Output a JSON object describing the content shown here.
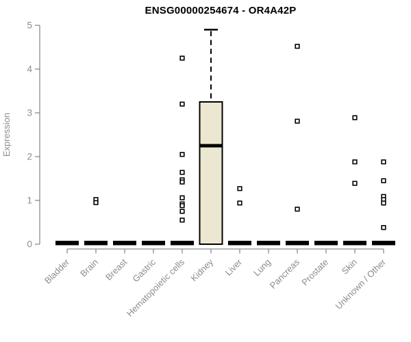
{
  "colors": {
    "background": "#ffffff",
    "box_fill": "#ece7d0",
    "box_border": "#000000",
    "median": "#000000",
    "zero_bar": "#000000",
    "whisker": "#000000",
    "outlier_fill": "#ffffff",
    "outlier_border": "#000000",
    "axis": "#8a8a8a",
    "label_text": "#8c8c8c",
    "title_text": "#000000"
  },
  "chart_data": {
    "type": "boxplot",
    "title": "ENSG00000254674 - OR4A42P",
    "xlabel": "",
    "ylabel": "Expression",
    "ylim": [
      0,
      5
    ],
    "yticks": [
      0,
      1,
      2,
      3,
      4,
      5
    ],
    "grid": false,
    "legend": false,
    "categories": [
      "Bladder",
      "Brain",
      "Breast",
      "Gastric",
      "Hematopoietic cells",
      "Kidney",
      "Liver",
      "Lung",
      "Pancreas",
      "Prostate",
      "Skin",
      "Unknown / Other"
    ],
    "boxes": [
      {
        "category": "Bladder",
        "q1": 0,
        "median": 0,
        "q3": 0,
        "whisker_low": 0,
        "whisker_high": 0,
        "outliers": []
      },
      {
        "category": "Brain",
        "q1": 0,
        "median": 0,
        "q3": 0,
        "whisker_low": 0,
        "whisker_high": 0,
        "outliers": [
          1.02,
          0.95
        ]
      },
      {
        "category": "Breast",
        "q1": 0,
        "median": 0,
        "q3": 0,
        "whisker_low": 0,
        "whisker_high": 0,
        "outliers": []
      },
      {
        "category": "Gastric",
        "q1": 0,
        "median": 0,
        "q3": 0,
        "whisker_low": 0,
        "whisker_high": 0,
        "outliers": []
      },
      {
        "category": "Hematopoietic cells",
        "q1": 0,
        "median": 0,
        "q3": 0,
        "whisker_low": 0,
        "whisker_high": 0,
        "outliers": [
          4.25,
          3.2,
          2.05,
          1.64,
          1.47,
          1.42,
          1.06,
          0.92,
          0.88,
          0.75,
          0.55
        ]
      },
      {
        "category": "Kidney",
        "q1": 0,
        "median": 2.25,
        "q3": 3.25,
        "whisker_low": 0,
        "whisker_high": 4.9,
        "outliers": []
      },
      {
        "category": "Liver",
        "q1": 0,
        "median": 0,
        "q3": 0,
        "whisker_low": 0,
        "whisker_high": 0,
        "outliers": [
          1.27,
          0.94
        ]
      },
      {
        "category": "Lung",
        "q1": 0,
        "median": 0,
        "q3": 0,
        "whisker_low": 0,
        "whisker_high": 0,
        "outliers": []
      },
      {
        "category": "Pancreas",
        "q1": 0,
        "median": 0,
        "q3": 0,
        "whisker_low": 0,
        "whisker_high": 0,
        "outliers": [
          4.52,
          2.81,
          0.8
        ]
      },
      {
        "category": "Prostate",
        "q1": 0,
        "median": 0,
        "q3": 0,
        "whisker_low": 0,
        "whisker_high": 0,
        "outliers": []
      },
      {
        "category": "Skin",
        "q1": 0,
        "median": 0,
        "q3": 0,
        "whisker_low": 0,
        "whisker_high": 0,
        "outliers": [
          2.89,
          1.88,
          1.39
        ]
      },
      {
        "category": "Unknown / Other",
        "q1": 0,
        "median": 0,
        "q3": 0,
        "whisker_low": 0,
        "whisker_high": 0,
        "outliers": [
          1.88,
          1.45,
          1.09,
          1.02,
          0.94,
          0.38
        ]
      }
    ]
  }
}
